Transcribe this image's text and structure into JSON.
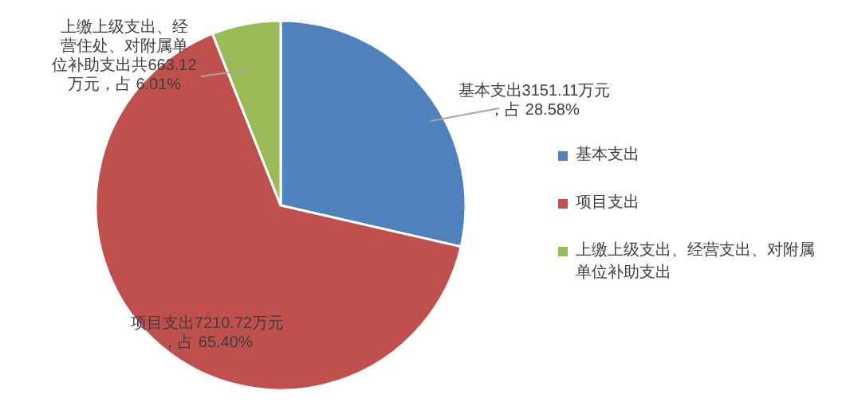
{
  "chart_data": {
    "type": "pie",
    "categories": [
      "基本支出",
      "项目支出",
      "上缴上级支出、经营支出、对附属单位补助支出"
    ],
    "values": [
      3151.11,
      7210.72,
      663.12
    ],
    "colors": [
      "#4f81bd",
      "#c0504d",
      "#9bbb59"
    ],
    "value_labels": [
      "基本支出3151.11万元，占 28.58%",
      "项目支出7210.72万元，占 65.40%",
      "上缴上级支出、经营住处、对附属单位补助支出共663.12万元，占 6.01%"
    ],
    "legend": "right"
  }
}
